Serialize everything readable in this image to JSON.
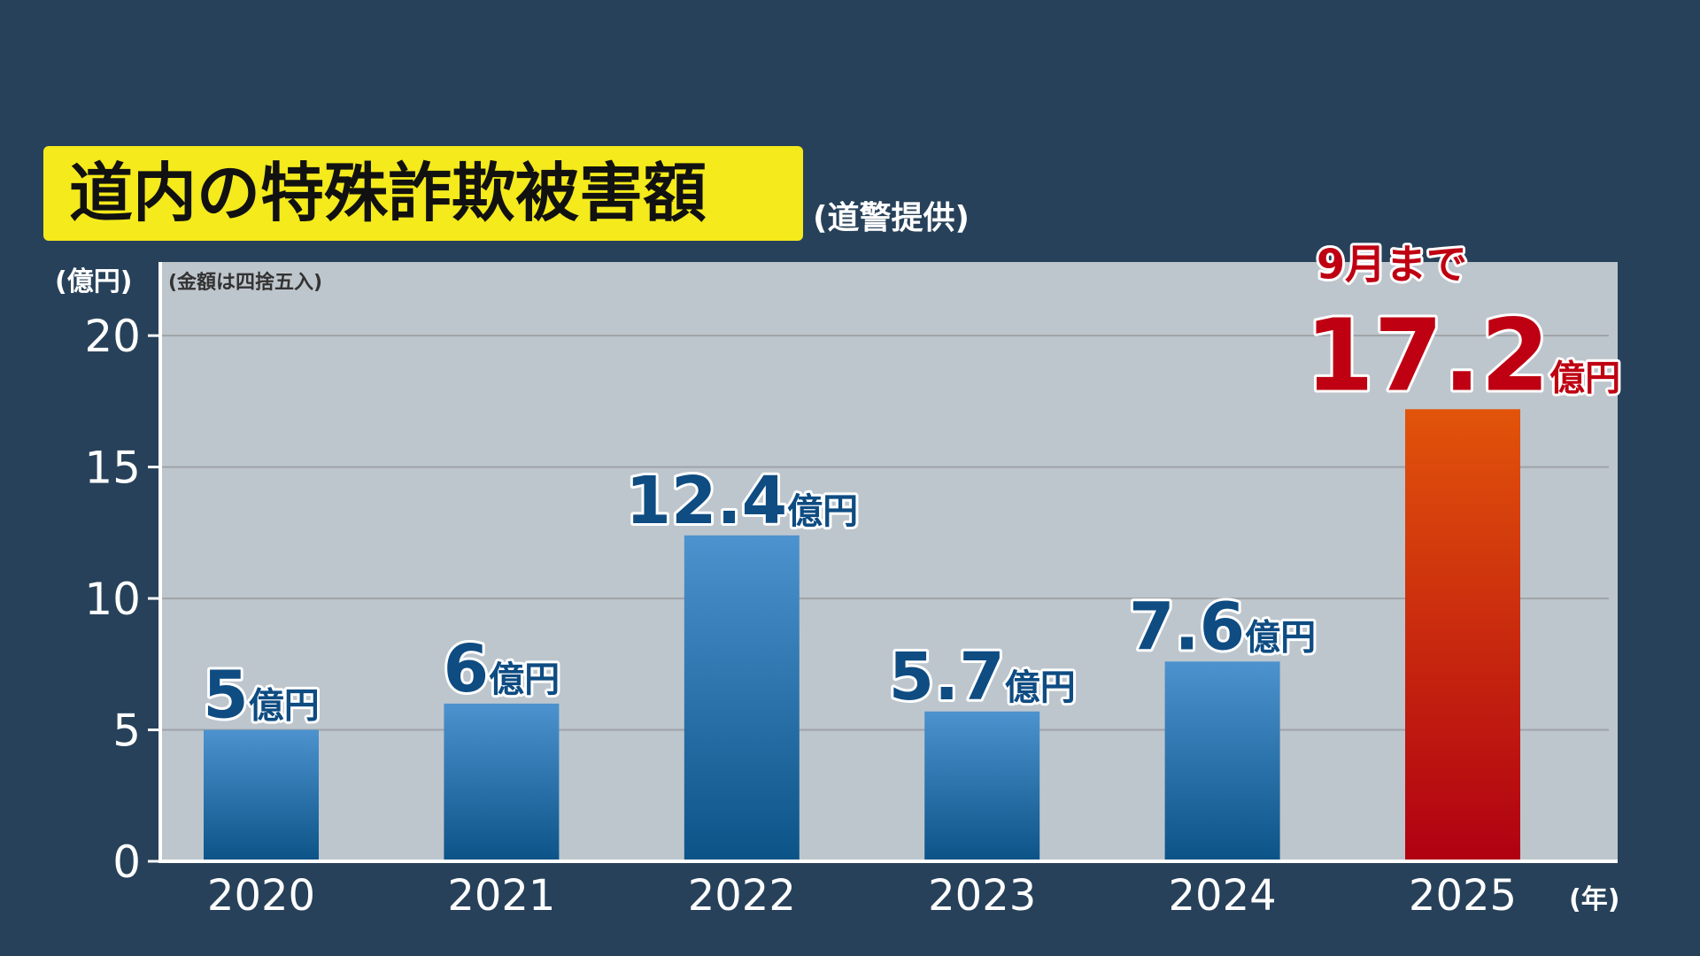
{
  "chart_data": {
    "type": "bar",
    "title": "道内の特殊詐欺被害額",
    "subtitle": "(道警提供)",
    "y_axis_label": "(億円)",
    "x_axis_label": "(年)",
    "note": "(金額は四捨五入)",
    "annotation": "9月まで",
    "value_unit": "億円",
    "categories": [
      "2020",
      "2021",
      "2022",
      "2023",
      "2024",
      "2025"
    ],
    "values": [
      5,
      6,
      12.4,
      5.7,
      7.6,
      17.2
    ],
    "bar_gradients": [
      [
        "#4c93cf",
        "#0b5387"
      ],
      [
        "#4c93cf",
        "#0b5387"
      ],
      [
        "#4c93cf",
        "#0b5387"
      ],
      [
        "#4c93cf",
        "#0b5387"
      ],
      [
        "#4c93cf",
        "#0b5387"
      ],
      [
        "#e2540a",
        "#b00012"
      ]
    ],
    "label_colors": [
      "#0e4c82",
      "#0e4c82",
      "#0e4c82",
      "#0e4c82",
      "#0e4c82",
      "#bf0012"
    ],
    "ylim": [
      0,
      22.8
    ],
    "yticks": [
      0,
      5,
      10,
      15,
      20
    ],
    "grid": true
  }
}
